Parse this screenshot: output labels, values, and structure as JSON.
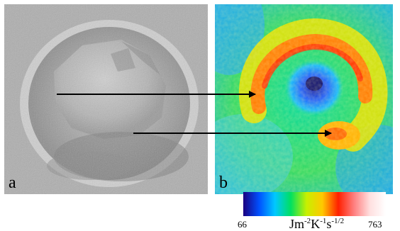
{
  "figure": {
    "panel_a_label": "a",
    "panel_b_label": "b"
  },
  "colorbar": {
    "min_label": "66",
    "max_label": "763",
    "unit_base": "Jm",
    "unit_exp1": "-2",
    "unit_mid": "K",
    "unit_exp2": "-1",
    "unit_end": "s",
    "unit_exp3": "-1/2",
    "colors": [
      "#1a0080",
      "#0050ff",
      "#00c8ff",
      "#00e060",
      "#c8f000",
      "#ffc800",
      "#ff2000",
      "#ff8080",
      "#ffe0e0",
      "#ffffff"
    ]
  }
}
